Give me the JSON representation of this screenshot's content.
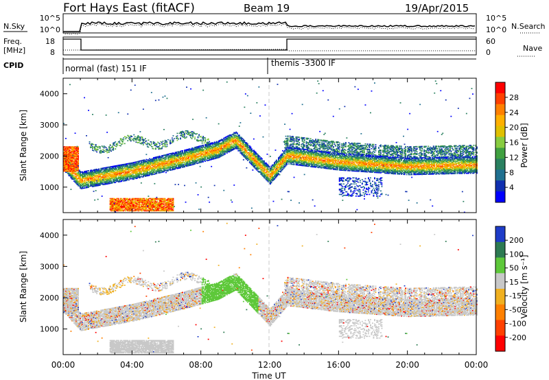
{
  "header": {
    "station": "Fort Hays East (fitACF)",
    "beam": "Beam 19",
    "date": "19/Apr/2015"
  },
  "top_panels": {
    "nsky_label": "N.Sky",
    "nsearch_label": "N.Search",
    "noise_ticks_left": [
      "10^5",
      "10^0"
    ],
    "noise_ticks_right": [
      "10^5",
      "10^0"
    ],
    "freq_label_1": "Freq.",
    "freq_label_2": "[MHz]",
    "freq_ticks": [
      "18",
      "8"
    ],
    "nave_label": "Nave",
    "nave_ticks": [
      "60",
      "0"
    ],
    "cpid_label": "CPID",
    "cpid_modes": [
      "normal (fast) 151 IF",
      "themis -3300 IF"
    ]
  },
  "power_colorbar": {
    "title": "Power [dB]",
    "ticks": [
      "28",
      "24",
      "20",
      "16",
      "12",
      "8",
      "4"
    ],
    "colors": [
      "#ff0000",
      "#ff4000",
      "#ff8000",
      "#ffb000",
      "#e0c000",
      "#88cc40",
      "#40a040",
      "#2a8060",
      "#207090",
      "#1030b0",
      "#0000ff"
    ]
  },
  "velocity_colorbar": {
    "title": "Velocity [m s⁻¹]",
    "ticks": [
      "200",
      "100",
      "50",
      "15",
      "-15",
      "-50",
      "-100",
      "-200"
    ],
    "colors": [
      "#1e3cc8",
      "#2d7a52",
      "#5ec83a",
      "#c8c8c8",
      "#f0b020",
      "#ff8000",
      "#ff4000",
      "#ff0000"
    ]
  },
  "x_axis": {
    "title": "Time UT",
    "ticks": [
      "00:00",
      "04:00",
      "08:00",
      "12:00",
      "16:00",
      "20:00",
      "00:00"
    ]
  },
  "chart_data": [
    {
      "type": "heatmap",
      "name": "power",
      "ylabel": "Slant Range [km]",
      "xlabel": "",
      "xlim_hours": [
        0,
        24
      ],
      "ylim_km": [
        180,
        4500
      ],
      "y_ticks": [
        1000,
        2000,
        3000,
        4000
      ],
      "colorbar": "Power [dB]",
      "main_band_range_km": [
        [
          0,
          1800
        ],
        [
          1,
          1200
        ],
        [
          4,
          1500
        ],
        [
          7,
          1900
        ],
        [
          9,
          2200
        ],
        [
          10,
          2500
        ],
        [
          12,
          1350
        ],
        [
          13,
          2000
        ],
        [
          16,
          1800
        ],
        [
          20,
          1650
        ],
        [
          24,
          1700
        ]
      ],
      "features": [
        {
          "t_hours": [
            0.1,
            0.9
          ],
          "range_km": [
            1500,
            2300
          ],
          "peak_db": 24
        },
        {
          "t_hours": [
            2.7,
            6.4
          ],
          "range_km": [
            230,
            650
          ],
          "peak_db": 28
        },
        {
          "t_hours": [
            10.0,
            10.7
          ],
          "range_km": [
            2300,
            2600
          ],
          "peak_db": 22
        }
      ]
    },
    {
      "type": "heatmap",
      "name": "velocity",
      "ylabel": "Slant Range [km]",
      "xlabel": "Time UT",
      "xlim_hours": [
        0,
        24
      ],
      "ylim_km": [
        180,
        4500
      ],
      "y_ticks": [
        1000,
        2000,
        3000,
        4000
      ],
      "colorbar": "Velocity [m s⁻¹]",
      "features": [
        {
          "t_hours": [
            8.0,
            11.3
          ],
          "range_km": [
            1300,
            2700
          ],
          "velocity_ms": 50
        },
        {
          "t_hours": [
            12.8,
            24.0
          ],
          "range_km": [
            1600,
            2300
          ],
          "velocity_ms": 0
        },
        {
          "t_hours": [
            2.0,
            4.0
          ],
          "range_km": [
            1800,
            2700
          ],
          "velocity_ms": -50
        }
      ]
    }
  ]
}
